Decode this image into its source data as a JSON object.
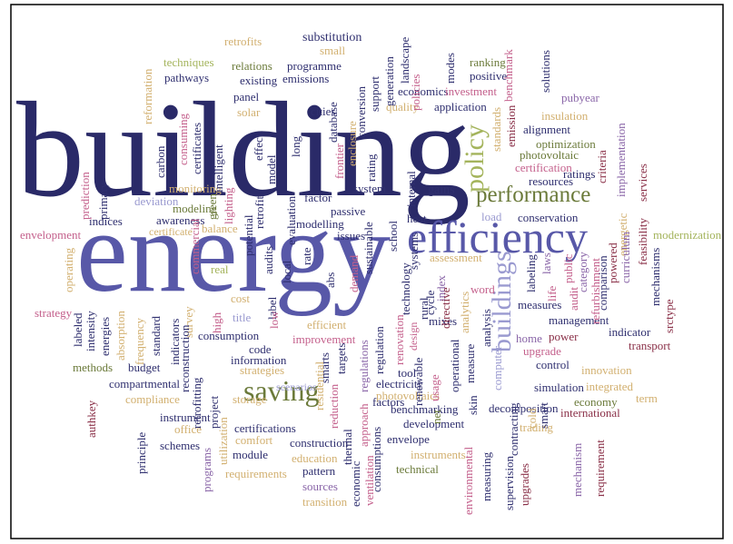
{
  "words": [
    "building",
    "energy",
    "efficiency",
    "performance",
    "policy",
    "buildings",
    "saving",
    "substitution",
    "small",
    "retrofits",
    "relations",
    "programme",
    "emissions",
    "existing",
    "techniques",
    "pathways",
    "panel",
    "solar",
    "cities",
    "economics",
    "investment",
    "positive",
    "ranking",
    "application",
    "quality",
    "alignment",
    "insulation",
    "optimization",
    "pubyear",
    "certification",
    "photovoltaic",
    "ratings",
    "resources",
    "gains",
    "system",
    "factor",
    "passive",
    "modelling",
    "monitoring",
    "deviation",
    "modeling",
    "awareness",
    "indices",
    "envelopment",
    "certificate",
    "balance",
    "conservation",
    "load",
    "heat",
    "issues",
    "assessment",
    "modernization",
    "strategy",
    "real",
    "cost",
    "title",
    "consumption",
    "code",
    "information",
    "improvement",
    "efficient",
    "strategies",
    "measures",
    "management",
    "indicator",
    "transport",
    "home",
    "upgrade",
    "power",
    "control",
    "innovation",
    "simulation",
    "integrated",
    "economy",
    "international",
    "term",
    "decomposition",
    "trading",
    "benchmarking",
    "development",
    "envelope",
    "instruments",
    "technical",
    "photovoltaics",
    "electricity",
    "factors",
    "scenarios",
    "storage",
    "methods",
    "budget",
    "compartmental",
    "compliance",
    "instrument",
    "office",
    "schemes",
    "comfort",
    "certifications",
    "module",
    "construction",
    "education",
    "requirements",
    "pattern",
    "sources",
    "transition",
    "tool",
    "mixes",
    "word",
    "design",
    "reformation",
    "consuming",
    "carbon",
    "certificates",
    "intelligent",
    "effect",
    "long",
    "model",
    "database",
    "conversion",
    "support",
    "generation",
    "landscape",
    "enclosure",
    "frontier",
    "rating",
    "internal",
    "policies",
    "modes",
    "benchmark",
    "solutions",
    "emission",
    "standards",
    "criteria",
    "implementation",
    "services",
    "energetic",
    "feasibility",
    "curriculum",
    "powered",
    "category",
    "public",
    "refurbishment",
    "comparison",
    "mechanisms",
    "srctype",
    "prediction",
    "primary",
    "green",
    "lighting",
    "retrofit",
    "potential",
    "operating",
    "labeled",
    "intensity",
    "energies",
    "absorption",
    "frequency",
    "standard",
    "indicators",
    "survey",
    "reconstruction",
    "retrofitting",
    "high",
    "project",
    "utilization",
    "programs",
    "commercial",
    "audits",
    "label",
    "local",
    "rate",
    "abs",
    "low",
    "demand",
    "sustainable",
    "school",
    "systems",
    "technology",
    "rural",
    "index",
    "cycle",
    "directive",
    "analytics",
    "analysis",
    "renovation",
    "regulation",
    "regulations",
    "targets",
    "smarts",
    "residential",
    "reduction",
    "thermal",
    "approach",
    "consumptions",
    "ventilation",
    "economic",
    "renewable",
    "usage",
    "net",
    "operational",
    "skin",
    "environmental",
    "measuring",
    "supervision",
    "upgrades",
    "contracting",
    "cold",
    "smart",
    "mechanism",
    "requirement",
    "audit",
    "life",
    "labeling",
    "laws",
    "principle",
    "authkey",
    "evaluation",
    "measure",
    "computer"
  ]
}
